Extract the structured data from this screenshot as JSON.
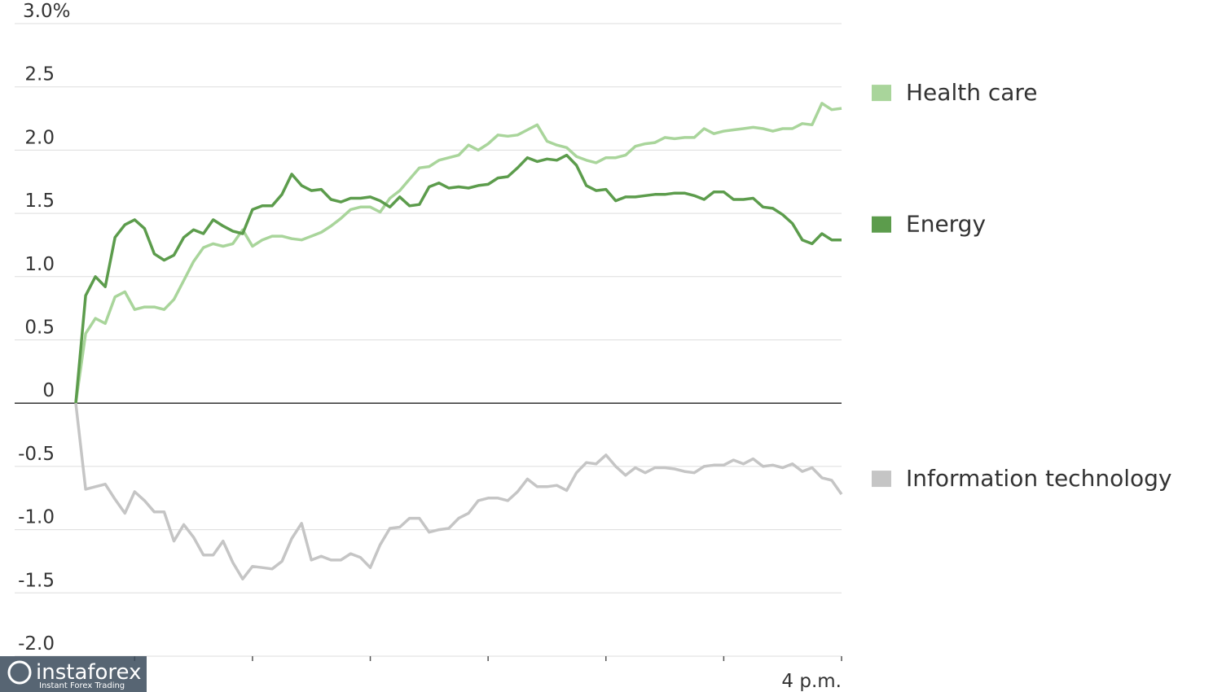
{
  "chart_data": {
    "type": "line",
    "ylim": [
      -2,
      3
    ],
    "yticks": [
      {
        "value": 3,
        "label": "3.0%"
      },
      2.5,
      {
        "value": 2,
        "label": "2.0"
      },
      1.5,
      {
        "value": 1,
        "label": "1.0"
      },
      0.5,
      0,
      -0.5,
      {
        "value": -1,
        "label": "-1.0"
      },
      -1.5,
      {
        "value": -2,
        "label": "-2.0"
      }
    ],
    "grid": true,
    "xlim": [
      0,
      390
    ],
    "xtick_marks": [
      30,
      90,
      150,
      210,
      270,
      330,
      390
    ],
    "xtick_labels": [
      {
        "value": 390,
        "label": "4 p.m."
      }
    ],
    "x": [
      0,
      5,
      10,
      15,
      20,
      25,
      30,
      35,
      40,
      45,
      50,
      55,
      60,
      65,
      70,
      75,
      80,
      85,
      90,
      95,
      100,
      105,
      110,
      115,
      120,
      125,
      130,
      135,
      140,
      145,
      150,
      155,
      160,
      165,
      170,
      175,
      180,
      185,
      190,
      195,
      200,
      205,
      210,
      215,
      220,
      225,
      230,
      235,
      240,
      245,
      250,
      255,
      260,
      265,
      270,
      275,
      280,
      285,
      290,
      295,
      300,
      305,
      310,
      315,
      320,
      325,
      330,
      335,
      340,
      345,
      350,
      355,
      360,
      365,
      370,
      375,
      380,
      385,
      390
    ],
    "series": [
      {
        "name": "Health care",
        "color": "#a9d59b",
        "values": [
          0,
          0.55,
          0.67,
          0.63,
          0.84,
          0.88,
          0.74,
          0.76,
          0.76,
          0.74,
          0.82,
          0.97,
          1.12,
          1.23,
          1.26,
          1.24,
          1.26,
          1.37,
          1.24,
          1.29,
          1.32,
          1.32,
          1.3,
          1.29,
          1.32,
          1.35,
          1.4,
          1.46,
          1.53,
          1.55,
          1.55,
          1.51,
          1.62,
          1.68,
          1.77,
          1.86,
          1.87,
          1.92,
          1.94,
          1.96,
          2.04,
          2.0,
          2.05,
          2.12,
          2.11,
          2.12,
          2.16,
          2.2,
          2.07,
          2.04,
          2.02,
          1.95,
          1.92,
          1.9,
          1.94,
          1.94,
          1.96,
          2.03,
          2.05,
          2.06,
          2.1,
          2.09,
          2.1,
          2.1,
          2.17,
          2.13,
          2.15,
          2.16,
          2.17,
          2.18,
          2.17,
          2.15,
          2.17,
          2.17,
          2.21,
          2.2,
          2.37,
          2.32,
          2.33
        ]
      },
      {
        "name": "Energy",
        "color": "#5c9c4c",
        "values": [
          0,
          0.85,
          1.0,
          0.92,
          1.31,
          1.41,
          1.45,
          1.38,
          1.18,
          1.13,
          1.17,
          1.31,
          1.37,
          1.34,
          1.45,
          1.4,
          1.36,
          1.34,
          1.53,
          1.56,
          1.56,
          1.65,
          1.81,
          1.72,
          1.68,
          1.69,
          1.61,
          1.59,
          1.62,
          1.62,
          1.63,
          1.6,
          1.55,
          1.63,
          1.56,
          1.57,
          1.71,
          1.74,
          1.7,
          1.71,
          1.7,
          1.72,
          1.73,
          1.78,
          1.79,
          1.86,
          1.94,
          1.91,
          1.93,
          1.92,
          1.96,
          1.88,
          1.72,
          1.68,
          1.69,
          1.6,
          1.63,
          1.63,
          1.64,
          1.65,
          1.65,
          1.66,
          1.66,
          1.64,
          1.61,
          1.67,
          1.67,
          1.61,
          1.61,
          1.62,
          1.55,
          1.54,
          1.49,
          1.42,
          1.29,
          1.26,
          1.34,
          1.29,
          1.29
        ]
      },
      {
        "name": "Information technology",
        "color": "#c5c5c5",
        "values": [
          0,
          -0.68,
          -0.66,
          -0.64,
          -0.76,
          -0.87,
          -0.7,
          -0.77,
          -0.86,
          -0.86,
          -1.09,
          -0.96,
          -1.06,
          -1.2,
          -1.2,
          -1.09,
          -1.26,
          -1.39,
          -1.29,
          -1.3,
          -1.31,
          -1.25,
          -1.07,
          -0.95,
          -1.24,
          -1.21,
          -1.24,
          -1.24,
          -1.19,
          -1.22,
          -1.3,
          -1.12,
          -0.99,
          -0.98,
          -0.91,
          -0.91,
          -1.02,
          -1.0,
          -0.99,
          -0.91,
          -0.87,
          -0.77,
          -0.75,
          -0.75,
          -0.77,
          -0.7,
          -0.6,
          -0.66,
          -0.66,
          -0.65,
          -0.69,
          -0.55,
          -0.47,
          -0.48,
          -0.41,
          -0.5,
          -0.57,
          -0.51,
          -0.55,
          -0.51,
          -0.51,
          -0.52,
          -0.54,
          -0.55,
          -0.5,
          -0.49,
          -0.49,
          -0.45,
          -0.48,
          -0.44,
          -0.5,
          -0.49,
          -0.51,
          -0.48,
          -0.54,
          -0.51,
          -0.59,
          -0.61,
          -0.72
        ]
      }
    ]
  },
  "watermark": {
    "brand": "instaforex",
    "tagline": "Instant Forex Trading"
  }
}
